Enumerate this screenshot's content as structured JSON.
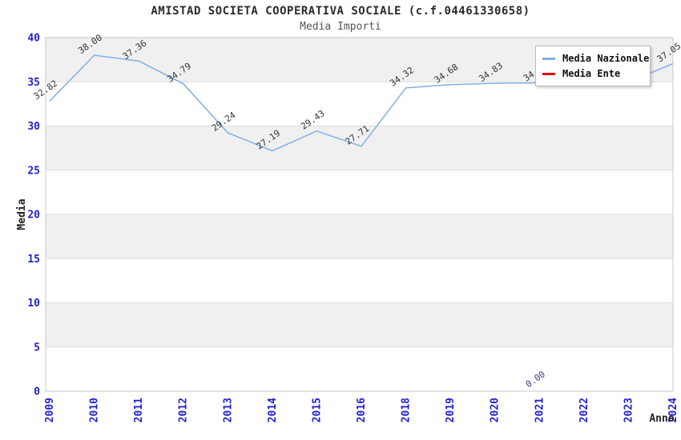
{
  "chart": {
    "title": "AMISTAD SOCIETA COOPERATIVA SOCIALE (c.f.04461330658)",
    "subtitle": "Media Importi",
    "ylabel": "Media",
    "xlabel": "Anno"
  },
  "legend": {
    "items": [
      {
        "label": "Media Nazionale",
        "color": "#7fb0e5"
      },
      {
        "label": "Media Ente",
        "color": "#dd1111"
      }
    ]
  },
  "chart_data": {
    "type": "line",
    "title": "AMISTAD SOCIETA COOPERATIVA SOCIALE (c.f.04461330658)",
    "subtitle": "Media Importi",
    "xlabel": "Anno",
    "ylabel": "Media",
    "ylim": [
      0,
      40
    ],
    "ytick_step": 5,
    "grid": true,
    "band_colors": [
      "#ffffff",
      "#f0f0f0"
    ],
    "tick_label_color": "#2222cc",
    "legend_position": "top-right",
    "categories": [
      "2009",
      "2010",
      "2011",
      "2012",
      "2013",
      "2014",
      "2015",
      "2016",
      "2018",
      "2019",
      "2020",
      "2021",
      "2022",
      "2023",
      "2024"
    ],
    "series": [
      {
        "name": "Media Nazionale",
        "color": "#7fb0e5",
        "values": [
          32.82,
          38.0,
          37.36,
          34.79,
          29.24,
          27.19,
          29.43,
          27.71,
          34.32,
          34.68,
          34.83,
          34.88,
          34.93,
          34.97,
          37.05
        ],
        "note": "labels for 2021-2023 are hidden behind the legend box"
      },
      {
        "name": "Media Ente",
        "color": "#dd1111",
        "points": [
          {
            "x": "2021",
            "y": 0.0
          }
        ]
      }
    ]
  }
}
